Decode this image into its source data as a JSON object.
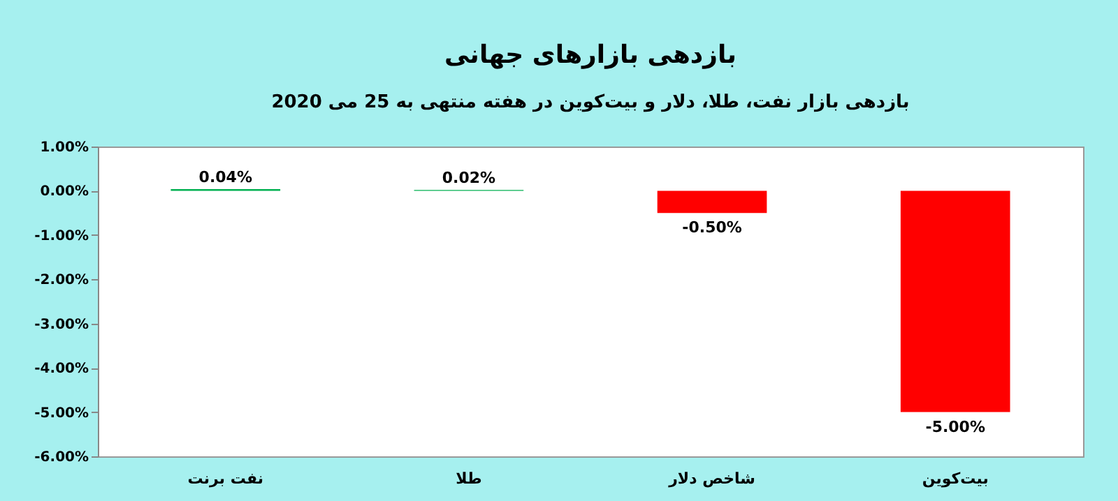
{
  "chart_data": {
    "type": "bar",
    "title": "بازدهی بازارهای جهانی",
    "subtitle": "بازدهی بازار نفت، طلا، دلار و بیت‌کوین در هفته منتهی به 25 می 2020",
    "categories": [
      "نفت برنت",
      "طلا",
      "شاخص دلار",
      "بیت‌کوین"
    ],
    "values": [
      0.04,
      0.02,
      -0.5,
      -5
    ],
    "colors": [
      "#00b050",
      "#00b050",
      "#ff0000",
      "#ff0000"
    ],
    "value_labels": [
      "0.04%",
      "0.02%",
      "-0.50%",
      "-5.00%"
    ],
    "ylim": [
      -6,
      1
    ],
    "yticks": [
      {
        "value": 1,
        "label": "1.00%"
      },
      {
        "value": 0,
        "label": "0.00%"
      },
      {
        "value": -1,
        "label": "-1.00%"
      },
      {
        "value": -2,
        "label": "-2.00%"
      },
      {
        "value": -3,
        "label": "-3.00%"
      },
      {
        "value": -4,
        "label": "-4.00%"
      },
      {
        "value": -5,
        "label": "-5.00%"
      },
      {
        "value": -6,
        "label": "-6.00%"
      }
    ],
    "grid": false,
    "legend": false
  }
}
